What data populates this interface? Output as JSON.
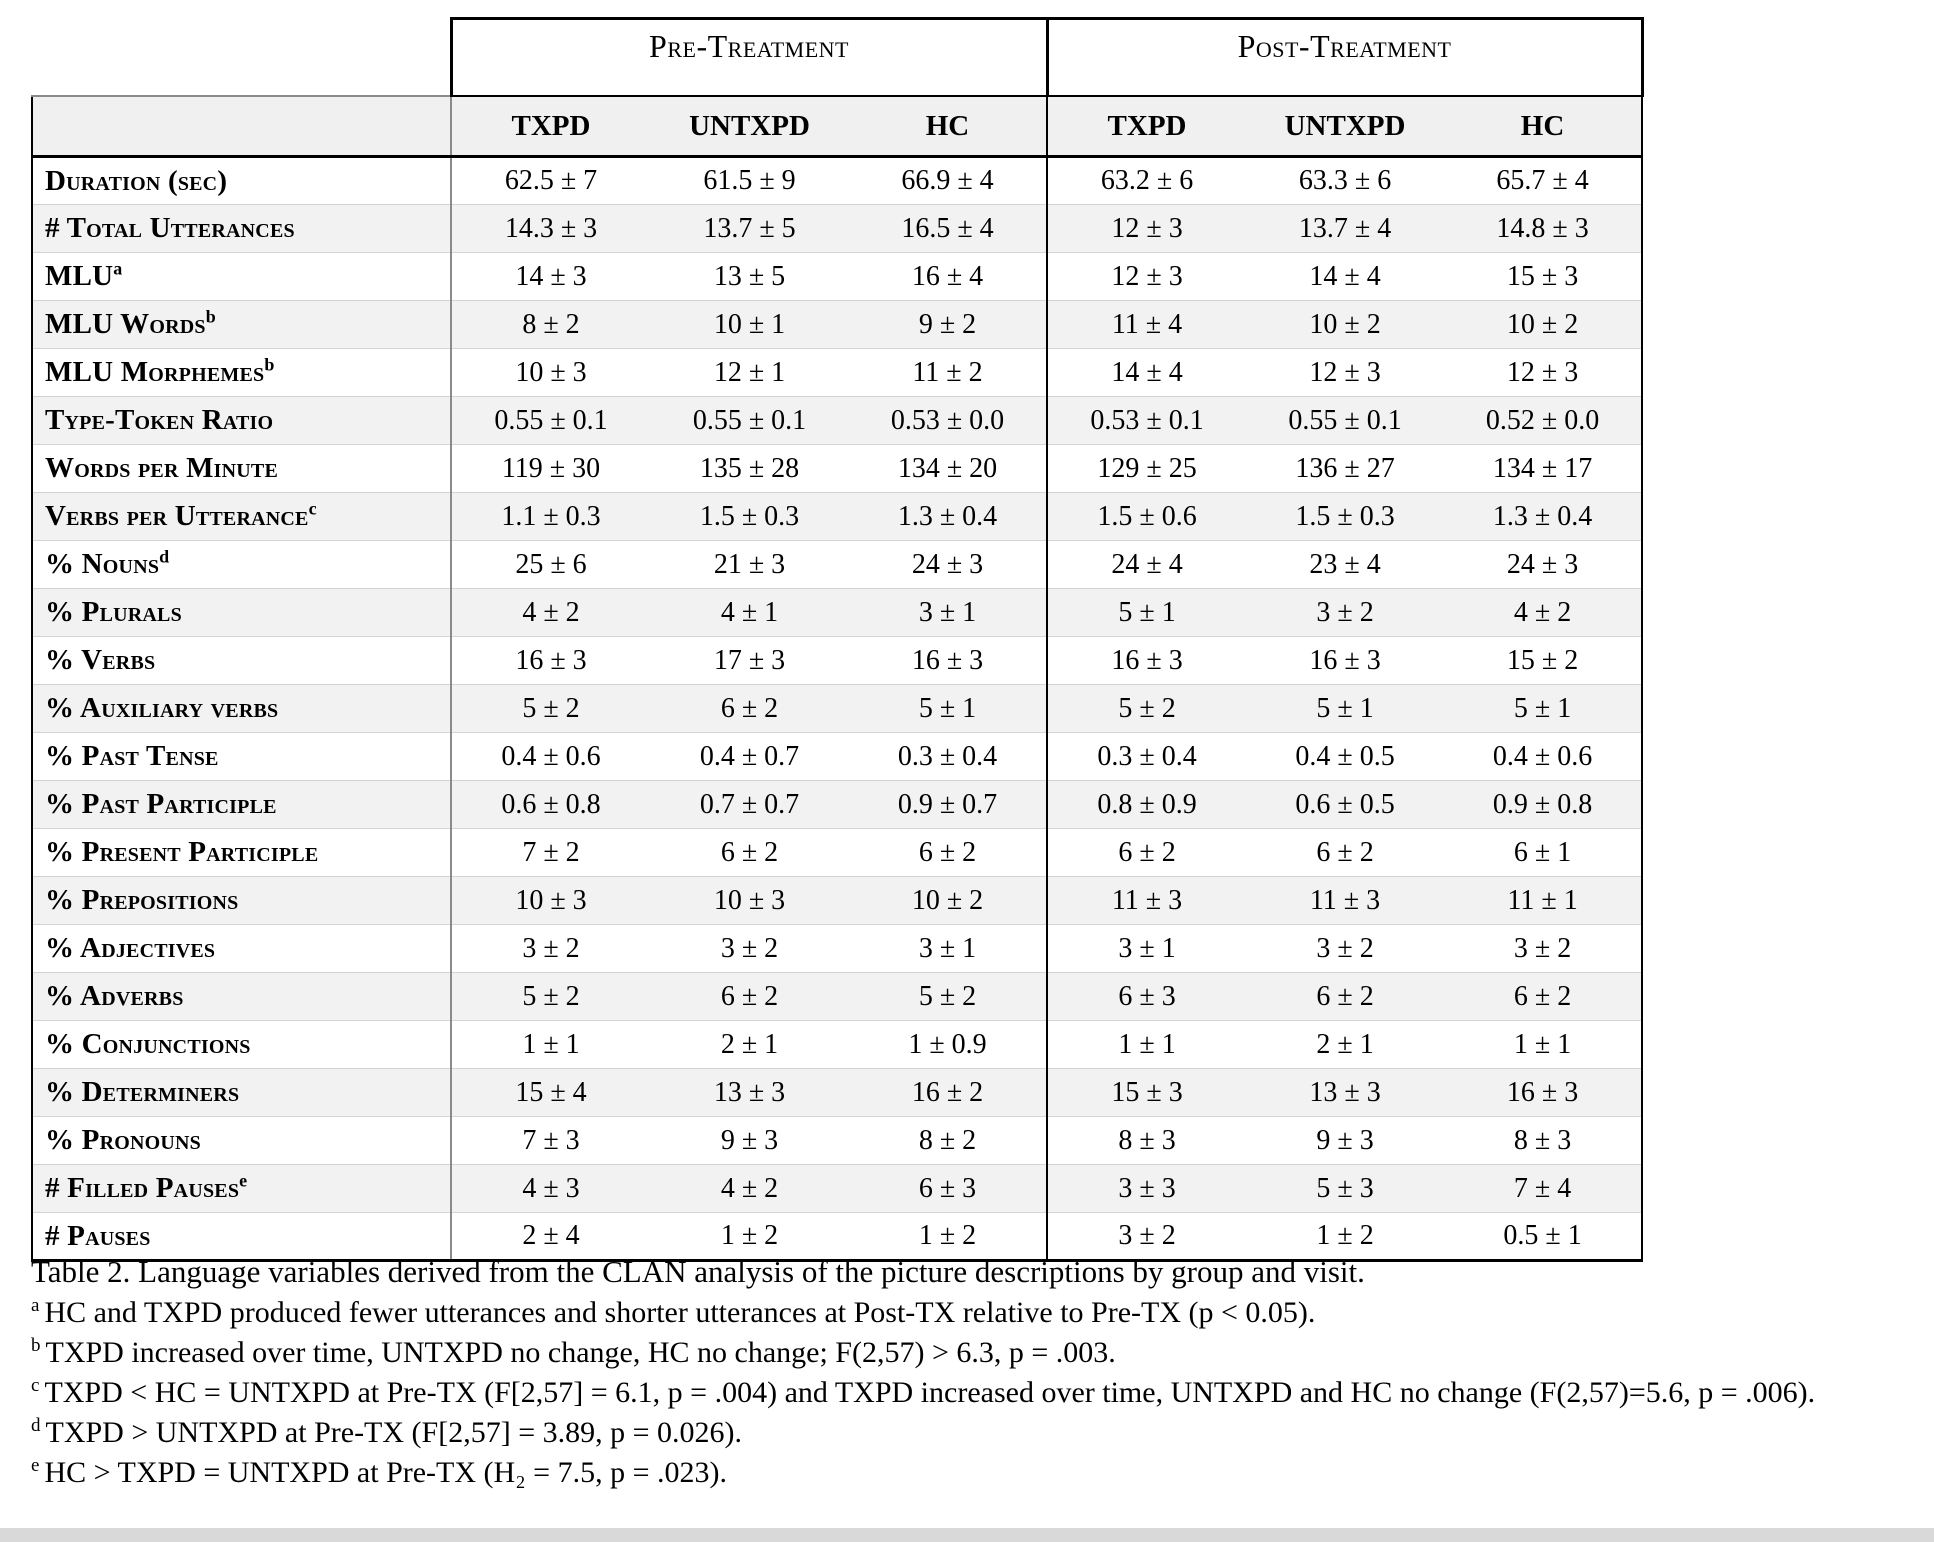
{
  "table": {
    "groups": [
      {
        "title": "Pre-Treatment",
        "cols": [
          "TXPD",
          "UNTXPD",
          "HC"
        ]
      },
      {
        "title": "Post-Treatment",
        "cols": [
          "TXPD",
          "UNTXPD",
          "HC"
        ]
      }
    ],
    "rows": [
      {
        "label": "Duration (sec)",
        "sup": "",
        "values": [
          "62.5 ± 7",
          "61.5 ± 9",
          "66.9 ± 4",
          "63.2 ± 6",
          "63.3 ± 6",
          "65.7 ± 4"
        ]
      },
      {
        "label": "# Total Utterances",
        "sup": "",
        "values": [
          "14.3 ± 3",
          "13.7 ± 5",
          "16.5 ± 4",
          "12 ± 3",
          "13.7 ± 4",
          "14.8 ± 3"
        ]
      },
      {
        "label": "MLU",
        "sup": "a",
        "values": [
          "14 ± 3",
          "13 ± 5",
          "16 ± 4",
          "12 ± 3",
          "14 ± 4",
          "15 ± 3"
        ]
      },
      {
        "label": "MLU Words",
        "sup": "b",
        "values": [
          "8 ± 2",
          "10 ± 1",
          "9 ± 2",
          "11 ± 4",
          "10 ± 2",
          "10 ± 2"
        ]
      },
      {
        "label": "MLU Morphemes",
        "sup": "b",
        "values": [
          "10 ± 3",
          "12 ± 1",
          "11 ± 2",
          "14 ± 4",
          "12 ± 3",
          "12 ± 3"
        ]
      },
      {
        "label": "Type-Token Ratio",
        "sup": "",
        "values": [
          "0.55 ± 0.1",
          "0.55 ± 0.1",
          "0.53 ± 0.0",
          "0.53 ± 0.1",
          "0.55 ± 0.1",
          "0.52 ± 0.0"
        ]
      },
      {
        "label": "Words per Minute",
        "sup": "",
        "values": [
          "119 ± 30",
          "135 ± 28",
          "134 ± 20",
          "129 ± 25",
          "136 ± 27",
          "134 ± 17"
        ]
      },
      {
        "label": "Verbs per Utterance",
        "sup": "c",
        "values": [
          "1.1 ± 0.3",
          "1.5 ± 0.3",
          "1.3 ± 0.4",
          "1.5 ± 0.6",
          "1.5 ± 0.3",
          "1.3 ± 0.4"
        ]
      },
      {
        "label": "% Nouns",
        "sup": "d",
        "values": [
          "25 ± 6",
          "21 ± 3",
          "24 ± 3",
          "24 ± 4",
          "23 ± 4",
          "24 ± 3"
        ]
      },
      {
        "label": "% Plurals",
        "sup": "",
        "values": [
          "4 ± 2",
          "4 ± 1",
          "3 ± 1",
          "5 ± 1",
          "3 ± 2",
          "4 ± 2"
        ]
      },
      {
        "label": "% Verbs",
        "sup": "",
        "values": [
          "16 ± 3",
          "17 ± 3",
          "16 ± 3",
          "16 ± 3",
          "16 ± 3",
          "15 ± 2"
        ]
      },
      {
        "label": "% Auxiliary verbs",
        "sup": "",
        "values": [
          "5 ± 2",
          "6 ± 2",
          "5 ± 1",
          "5 ± 2",
          "5 ± 1",
          "5 ± 1"
        ]
      },
      {
        "label": "% Past Tense",
        "sup": "",
        "values": [
          "0.4 ± 0.6",
          "0.4 ± 0.7",
          "0.3 ± 0.4",
          "0.3 ± 0.4",
          "0.4 ± 0.5",
          "0.4 ± 0.6"
        ]
      },
      {
        "label": "% Past Participle",
        "sup": "",
        "values": [
          "0.6 ± 0.8",
          "0.7 ± 0.7",
          "0.9 ± 0.7",
          "0.8 ± 0.9",
          "0.6 ± 0.5",
          "0.9 ± 0.8"
        ]
      },
      {
        "label": "% Present Participle",
        "sup": "",
        "values": [
          "7 ± 2",
          "6 ± 2",
          "6 ± 2",
          "6 ± 2",
          "6 ± 2",
          "6 ± 1"
        ]
      },
      {
        "label": "% Prepositions",
        "sup": "",
        "values": [
          "10 ± 3",
          "10 ± 3",
          "10 ± 2",
          "11 ± 3",
          "11 ± 3",
          "11 ± 1"
        ]
      },
      {
        "label": "% Adjectives",
        "sup": "",
        "values": [
          "3 ± 2",
          "3 ± 2",
          "3 ± 1",
          "3 ± 1",
          "3 ± 2",
          "3 ± 2"
        ]
      },
      {
        "label": "% Adverbs",
        "sup": "",
        "values": [
          "5 ± 2",
          "6 ± 2",
          "5 ± 2",
          "6 ± 3",
          "6 ± 2",
          "6 ± 2"
        ]
      },
      {
        "label": "% Conjunctions",
        "sup": "",
        "values": [
          "1 ± 1",
          "2 ± 1",
          "1 ± 0.9",
          "1 ± 1",
          "2 ± 1",
          "1 ± 1"
        ]
      },
      {
        "label": "% Determiners",
        "sup": "",
        "values": [
          "15 ± 4",
          "13 ± 3",
          "16 ± 2",
          "15 ± 3",
          "13 ± 3",
          "16 ± 3"
        ]
      },
      {
        "label": "% Pronouns",
        "sup": "",
        "values": [
          "7 ± 3",
          "9 ± 3",
          "8 ± 2",
          "8 ± 3",
          "9 ± 3",
          "8 ± 3"
        ]
      },
      {
        "label": "# Filled Pauses",
        "sup": "e",
        "values": [
          "4 ± 3",
          "4 ± 2",
          "6 ± 3",
          "3 ± 3",
          "5 ± 3",
          "7 ± 4"
        ]
      },
      {
        "label": "# Pauses",
        "sup": "",
        "values": [
          "2 ± 4",
          "1 ± 2",
          "1 ± 2",
          "3 ± 2",
          "1 ± 2",
          "0.5 ± 1"
        ]
      }
    ]
  },
  "caption": "Table 2. Language variables derived from the CLAN analysis of the picture descriptions by group and visit.",
  "footnotes": [
    {
      "marker": "a",
      "text": "HC and TXPD produced fewer utterances and shorter utterances at Post-TX relative to Pre-TX (p < 0.05)."
    },
    {
      "marker": "b",
      "text": "TXPD increased over time, UNTXPD no change, HC no change; F(2,57) > 6.3, p = .003."
    },
    {
      "marker": "c",
      "text": "TXPD < HC = UNTXPD at Pre-TX (F[2,57] = 6.1, p = .004) and TXPD increased over time, UNTXPD and HC no change (F(2,57)=5.6, p = .006)."
    },
    {
      "marker": "d",
      "text": "TXPD > UNTXPD at Pre-TX (F[2,57] = 3.89, p = 0.026)."
    },
    {
      "marker": "e",
      "text": "HC > TXPD = UNTXPD at Pre-TX (H₂ = 7.5, p = .023)."
    }
  ]
}
